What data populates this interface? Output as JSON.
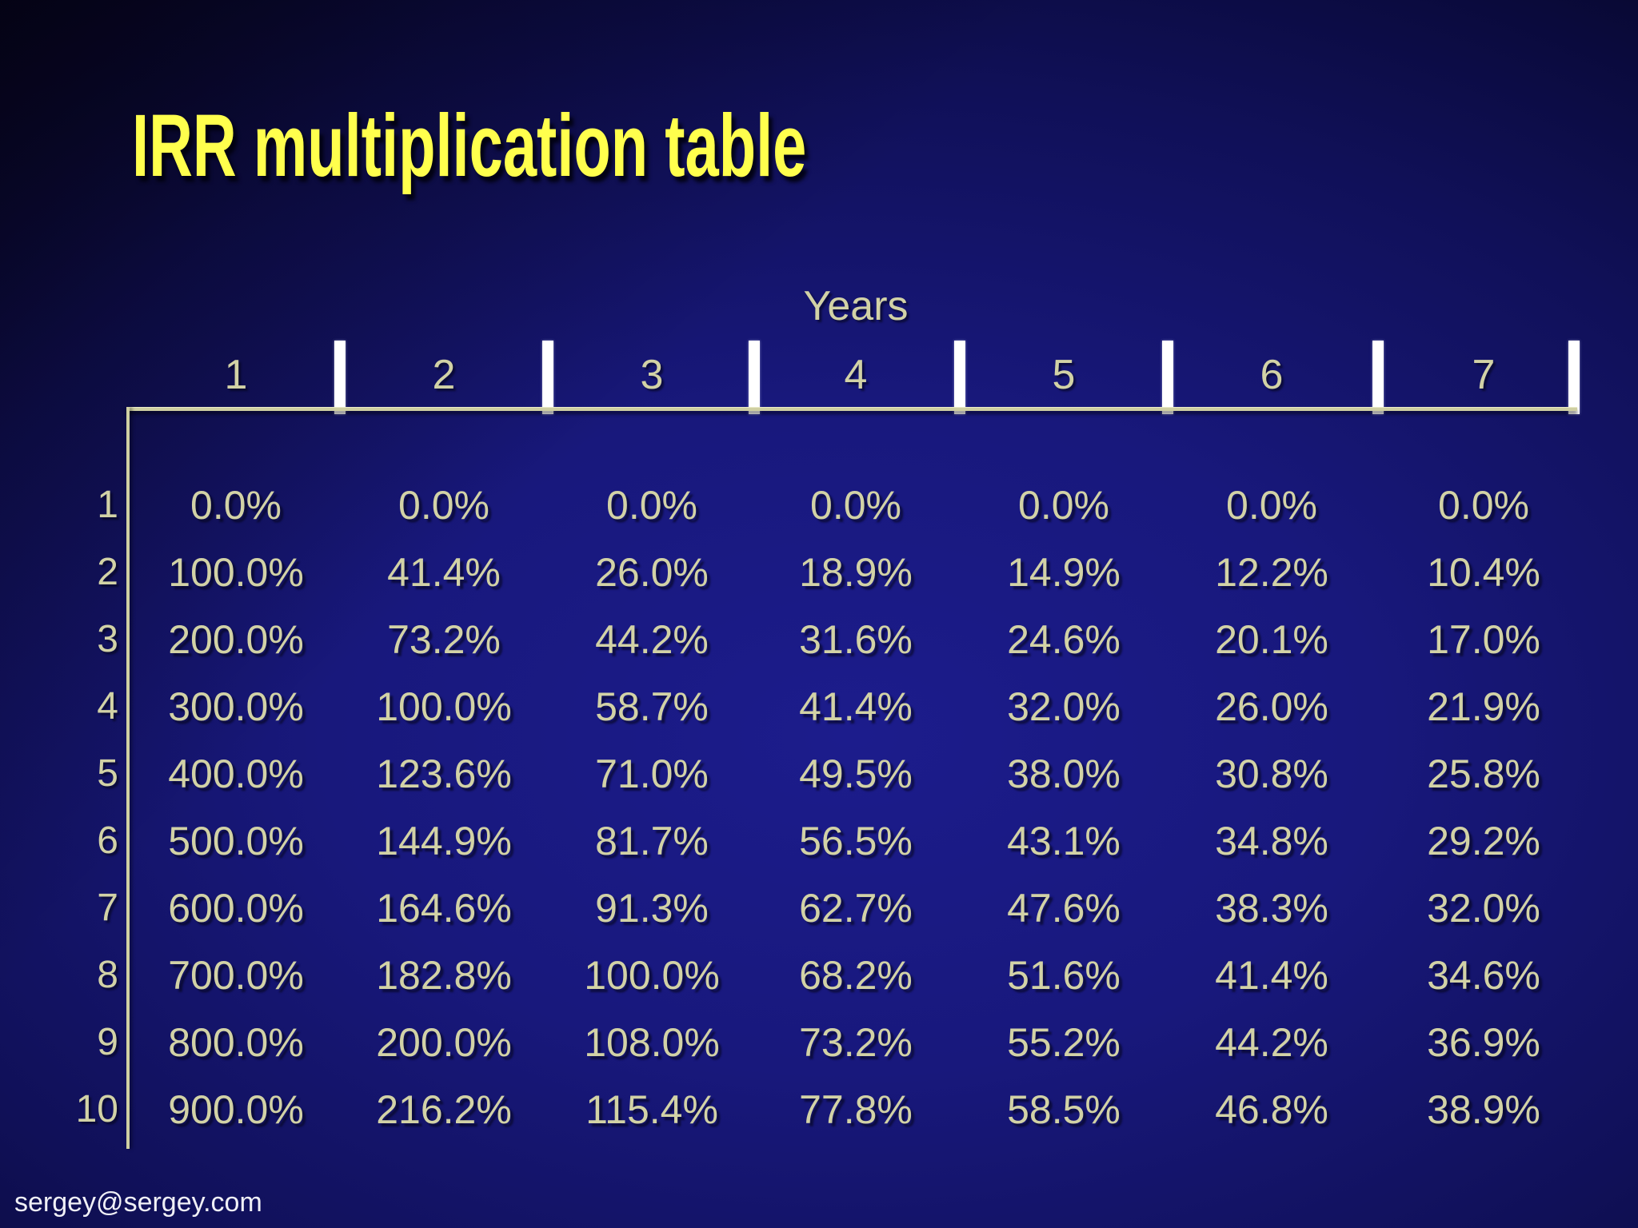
{
  "slide": {
    "title": "IRR multiplication table",
    "footer_email": "sergey@sergey.com"
  },
  "chart_data": {
    "type": "table",
    "title": "IRR multiplication table",
    "x_axis_label": "Years",
    "columns": [
      "1",
      "2",
      "3",
      "4",
      "5",
      "6",
      "7"
    ],
    "row_labels": [
      "1",
      "2",
      "3",
      "4",
      "5",
      "6",
      "7",
      "8",
      "9",
      "10"
    ],
    "rows": [
      [
        "0.0%",
        "0.0%",
        "0.0%",
        "0.0%",
        "0.0%",
        "0.0%",
        "0.0%"
      ],
      [
        "100.0%",
        "41.4%",
        "26.0%",
        "18.9%",
        "14.9%",
        "12.2%",
        "10.4%"
      ],
      [
        "200.0%",
        "73.2%",
        "44.2%",
        "31.6%",
        "24.6%",
        "20.1%",
        "17.0%"
      ],
      [
        "300.0%",
        "100.0%",
        "58.7%",
        "41.4%",
        "32.0%",
        "26.0%",
        "21.9%"
      ],
      [
        "400.0%",
        "123.6%",
        "71.0%",
        "49.5%",
        "38.0%",
        "30.8%",
        "25.8%"
      ],
      [
        "500.0%",
        "144.9%",
        "81.7%",
        "56.5%",
        "43.1%",
        "34.8%",
        "29.2%"
      ],
      [
        "600.0%",
        "164.6%",
        "91.3%",
        "62.7%",
        "47.6%",
        "38.3%",
        "32.0%"
      ],
      [
        "700.0%",
        "182.8%",
        "100.0%",
        "68.2%",
        "51.6%",
        "41.4%",
        "34.6%"
      ],
      [
        "800.0%",
        "200.0%",
        "108.0%",
        "73.2%",
        "55.2%",
        "44.2%",
        "36.9%"
      ],
      [
        "900.0%",
        "216.2%",
        "115.4%",
        "77.8%",
        "58.5%",
        "46.8%",
        "38.9%"
      ]
    ],
    "legend_position": "none",
    "grid": "header-rule-and-left-rule-only"
  },
  "colors": {
    "title_text": "#ffff4d",
    "header_text": "#d2d2a6",
    "table_text": "#d2d2a6",
    "tick": "#ffffff",
    "grid_line": "#cfcfa2",
    "footer_text": "#f0f0f6",
    "background_center": "#1c1c8c",
    "background_edge": "#0a0a3c"
  }
}
